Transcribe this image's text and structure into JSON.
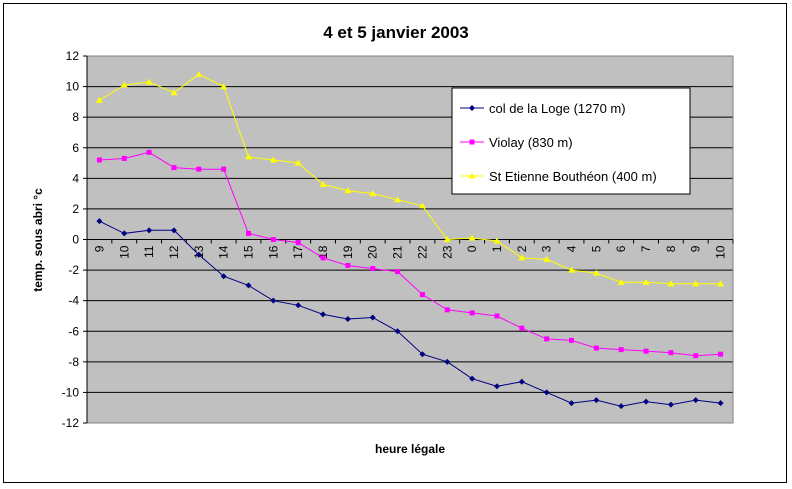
{
  "chart_data": {
    "type": "line",
    "title": "4 et 5 janvier 2003",
    "xlabel": "heure légale",
    "ylabel": "temp. sous abri °c",
    "ylim": [
      -12,
      12
    ],
    "ytick_step": 2,
    "grid": true,
    "legend_position": "right",
    "plot_background": "#c0c0c0",
    "categories": [
      "9",
      "10",
      "11",
      "12",
      "13",
      "14",
      "15",
      "16",
      "17",
      "18",
      "19",
      "20",
      "21",
      "22",
      "23",
      "0",
      "1",
      "2",
      "3",
      "4",
      "5",
      "6",
      "7",
      "8",
      "9",
      "10"
    ],
    "series": [
      {
        "name": "col de la Loge (1270 m)",
        "color": "#000080",
        "marker": "diamond",
        "values": [
          1.2,
          0.4,
          0.6,
          0.6,
          -1.0,
          -2.4,
          -3.0,
          -4.0,
          -4.3,
          -4.9,
          -5.2,
          -5.1,
          -6.0,
          -7.5,
          -8.0,
          -9.1,
          -9.6,
          -9.3,
          -10.0,
          -10.7,
          -10.5,
          -10.9,
          -10.6,
          -10.8,
          -10.5,
          -10.7
        ]
      },
      {
        "name": "Violay (830 m)",
        "color": "#ff00ff",
        "marker": "square",
        "values": [
          5.2,
          5.3,
          5.7,
          4.7,
          4.6,
          4.6,
          0.4,
          0.0,
          -0.2,
          -1.2,
          -1.7,
          -1.9,
          -2.1,
          -3.6,
          -4.6,
          -4.8,
          -5.0,
          -5.8,
          -6.5,
          -6.6,
          -7.1,
          -7.2,
          -7.3,
          -7.4,
          -7.6,
          -7.5
        ]
      },
      {
        "name": "St Etienne Bouthéon (400 m)",
        "color": "#ffff00",
        "marker": "triangle",
        "values": [
          9.1,
          10.1,
          10.3,
          9.6,
          10.8,
          10.0,
          5.4,
          5.2,
          5.0,
          3.6,
          3.2,
          3.0,
          2.6,
          2.2,
          0.0,
          0.1,
          -0.1,
          -1.2,
          -1.3,
          -2.0,
          -2.2,
          -2.8,
          -2.8,
          -2.9,
          -2.9,
          -2.9
        ]
      }
    ]
  }
}
